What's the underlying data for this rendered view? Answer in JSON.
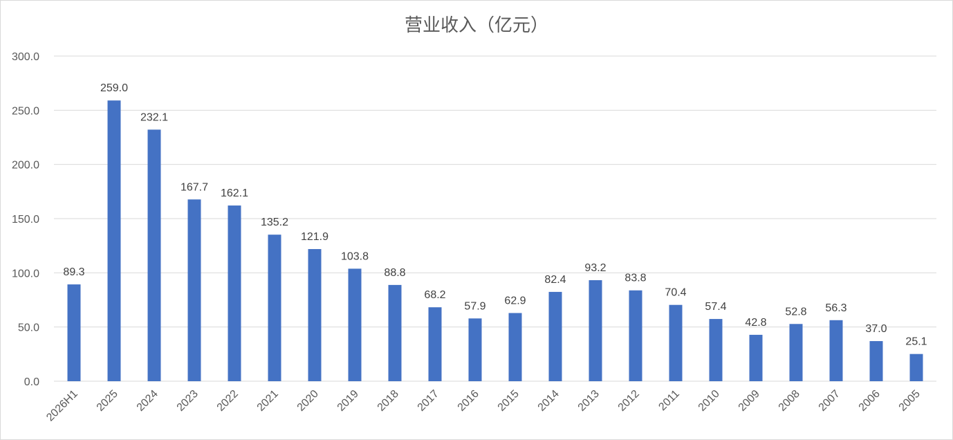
{
  "chart_data": {
    "type": "bar",
    "title": "营业收入（亿元）",
    "xlabel": "",
    "ylabel": "",
    "categories": [
      "2026H1",
      "2025",
      "2024",
      "2023",
      "2022",
      "2021",
      "2020",
      "2019",
      "2018",
      "2017",
      "2016",
      "2015",
      "2014",
      "2013",
      "2012",
      "2011",
      "2010",
      "2009",
      "2008",
      "2007",
      "2006",
      "2005"
    ],
    "values": [
      89.3,
      259.0,
      232.1,
      167.7,
      162.1,
      135.2,
      121.9,
      103.8,
      88.8,
      68.2,
      57.9,
      62.9,
      82.4,
      93.2,
      83.8,
      70.4,
      57.4,
      42.8,
      52.8,
      56.3,
      37.0,
      25.1
    ],
    "value_labels": [
      "89.3",
      "259.0",
      "232.1",
      "167.7",
      "162.1",
      "135.2",
      "121.9",
      "103.8",
      "88.8",
      "68.2",
      "57.9",
      "62.9",
      "82.4",
      "93.2",
      "83.8",
      "70.4",
      "57.4",
      "42.8",
      "52.8",
      "56.3",
      "37.0",
      "25.1"
    ],
    "ylim": [
      0,
      300
    ],
    "y_ticks": [
      "0.0",
      "50.0",
      "100.0",
      "150.0",
      "200.0",
      "250.0",
      "300.0"
    ],
    "grid": true,
    "legend": "none",
    "bar_color": "#4472c4"
  }
}
